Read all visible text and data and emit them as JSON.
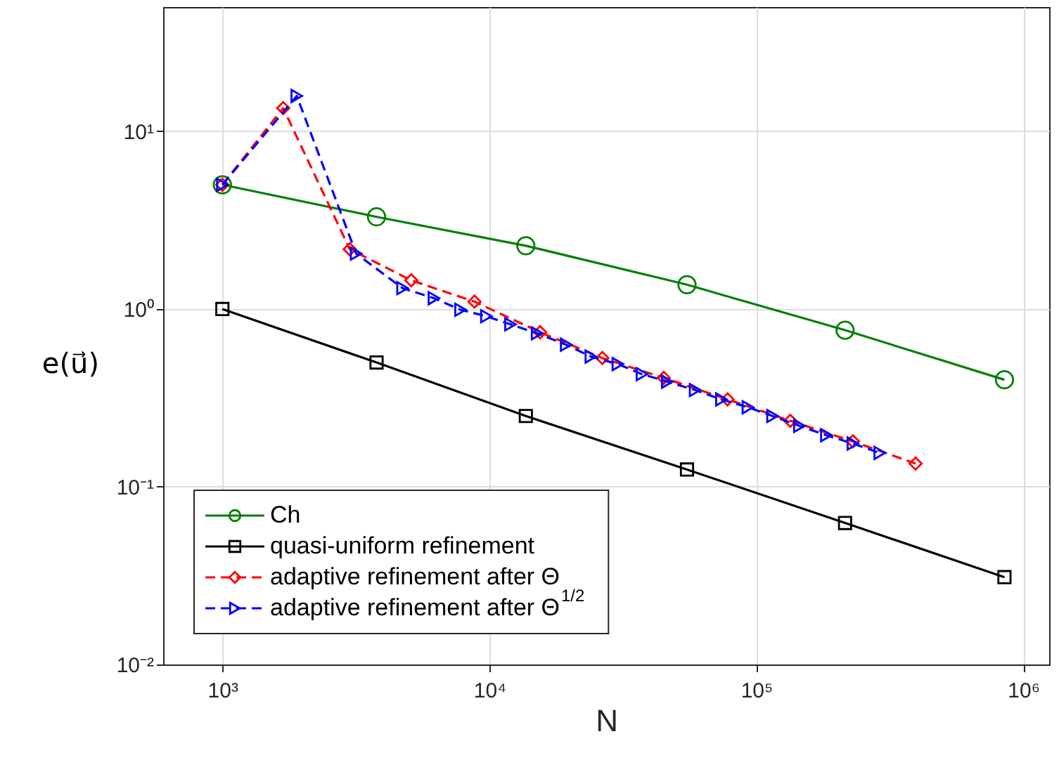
{
  "chart_data": {
    "type": "line",
    "xlabel": "N",
    "ylabel": "e(u⃗)",
    "log": "xy",
    "grid": true,
    "legend": "bottom left",
    "xlim": [
      600,
      1250000
    ],
    "ylim": [
      0.01,
      50
    ],
    "xticks": [
      {
        "value": 1000,
        "label": "10³"
      },
      {
        "value": 10000,
        "label": "10⁴"
      },
      {
        "value": 100000,
        "label": "10⁵"
      },
      {
        "value": 1000000,
        "label": "10⁶"
      }
    ],
    "yticks": [
      {
        "value": 0.01,
        "label": "10⁻²"
      },
      {
        "value": 0.1,
        "label": "10⁻¹"
      },
      {
        "value": 1,
        "label": "10⁰"
      },
      {
        "value": 10,
        "label": "10¹"
      }
    ],
    "series": [
      {
        "name": "Ch",
        "color": "#008000",
        "marker": "circle",
        "line_style": "solid",
        "x": [
          1000,
          3780,
          13700,
          55000,
          215000,
          850000
        ],
        "values": [
          5,
          3.3,
          2.27,
          1.37,
          0.76,
          0.4
        ]
      },
      {
        "name": "quasi-uniform refinement",
        "color": "#000000",
        "marker": "square",
        "line_style": "solid",
        "x": [
          1000,
          3780,
          13700,
          55000,
          215000,
          850000
        ],
        "values": [
          1,
          0.5,
          0.25,
          0.125,
          0.0625,
          0.031
        ]
      },
      {
        "name": "adaptive refinement after Θ",
        "color": "#ff0000",
        "marker": "diamond",
        "line_style": "dashed",
        "x": [
          1000,
          1690,
          3000,
          5100,
          8800,
          15500,
          26500,
          45000,
          78000,
          134000,
          230000,
          395000
        ],
        "values": [
          5,
          13.5,
          2.17,
          1.45,
          1.1,
          0.74,
          0.53,
          0.41,
          0.31,
          0.235,
          0.18,
          0.135
        ]
      },
      {
        "name": "adaptive refinement after Θ$^{1/2}$",
        "color": "#0000ff",
        "marker": "triangle",
        "line_style": "dashed",
        "x": [
          1000,
          1900,
          3170,
          4730,
          6200,
          7800,
          9750,
          12000,
          15100,
          19400,
          24000,
          30300,
          37300,
          46400,
          59000,
          74000,
          93000,
          115000,
          145000,
          183000,
          230000,
          290000
        ],
        "values": [
          5,
          15.8,
          2.05,
          1.31,
          1.15,
          0.99,
          0.91,
          0.82,
          0.73,
          0.63,
          0.54,
          0.49,
          0.43,
          0.39,
          0.35,
          0.31,
          0.28,
          0.25,
          0.22,
          0.195,
          0.175,
          0.155
        ]
      }
    ]
  }
}
